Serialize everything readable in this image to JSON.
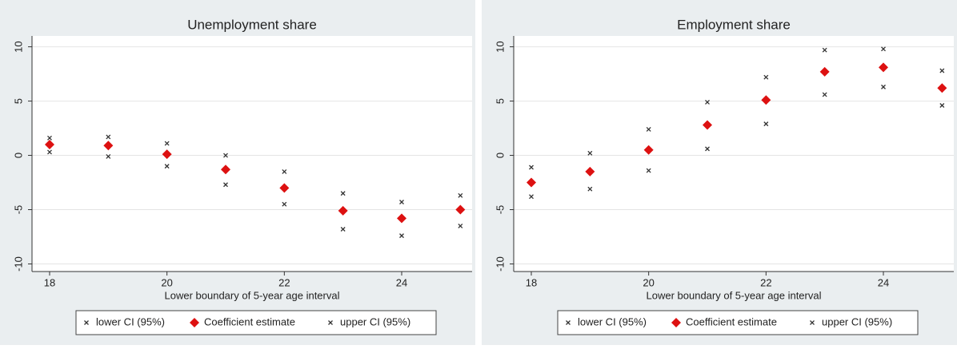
{
  "chart_data": [
    {
      "type": "scatter",
      "title": "Unemployment share",
      "x_label": "Lower boundary of 5-year age interval",
      "x": [
        18,
        19,
        20,
        21,
        22,
        23,
        24,
        25
      ],
      "series": [
        {
          "name": "lower CI (95%)",
          "color": "#333333",
          "marker": "x",
          "values": [
            0.3,
            -0.1,
            -1.0,
            -2.7,
            -4.5,
            -6.8,
            -7.4,
            -6.5
          ]
        },
        {
          "name": "Coefficient estimate",
          "color": "#dd1111",
          "marker": "diamond",
          "values": [
            1.0,
            0.9,
            0.1,
            -1.3,
            -3.0,
            -5.1,
            -5.8,
            -5.0
          ]
        },
        {
          "name": "upper CI (95%)",
          "color": "#333333",
          "marker": "x",
          "values": [
            1.6,
            1.7,
            1.1,
            0.0,
            -1.5,
            -3.5,
            -4.3,
            -3.7
          ]
        }
      ],
      "xlim": [
        17.7,
        25.2
      ],
      "xticks": [
        18,
        20,
        22,
        24
      ],
      "ylim": [
        -10.7,
        11
      ],
      "yticks": [
        -10,
        -5,
        0,
        5,
        10
      ],
      "grid": true
    },
    {
      "type": "scatter",
      "title": "Employment share",
      "x_label": "Lower boundary of 5-year age interval",
      "x": [
        18,
        19,
        20,
        21,
        22,
        23,
        24,
        25
      ],
      "series": [
        {
          "name": "lower CI (95%)",
          "color": "#333333",
          "marker": "x",
          "values": [
            -3.8,
            -3.1,
            -1.4,
            0.6,
            2.9,
            5.6,
            6.3,
            4.6
          ]
        },
        {
          "name": "Coefficient estimate",
          "color": "#dd1111",
          "marker": "diamond",
          "values": [
            -2.5,
            -1.5,
            0.5,
            2.8,
            5.1,
            7.7,
            8.1,
            6.2
          ]
        },
        {
          "name": "upper CI (95%)",
          "color": "#333333",
          "marker": "x",
          "values": [
            -1.1,
            0.2,
            2.4,
            4.9,
            7.2,
            9.7,
            9.8,
            7.8
          ]
        }
      ],
      "xlim": [
        17.7,
        25.2
      ],
      "xticks": [
        18,
        20,
        22,
        24
      ],
      "ylim": [
        -10.7,
        11
      ],
      "yticks": [
        -10,
        -5,
        0,
        5,
        10
      ],
      "grid": true
    }
  ]
}
